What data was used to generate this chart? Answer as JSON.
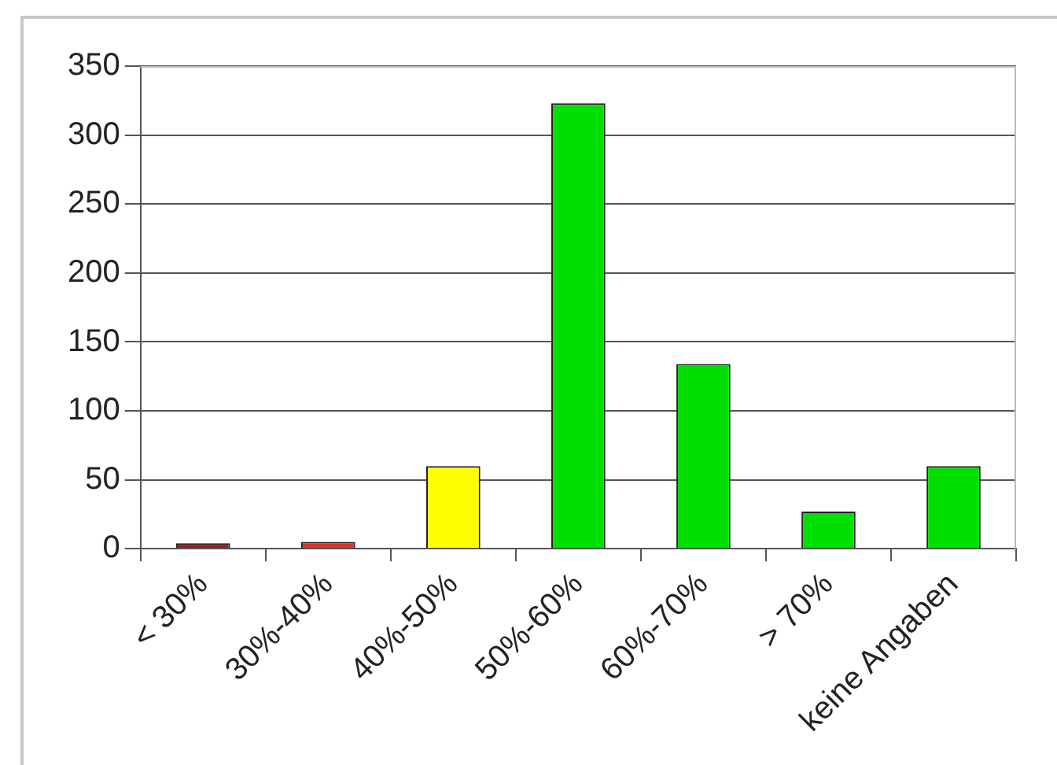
{
  "chart_data": {
    "type": "bar",
    "categories": [
      "< 30%",
      "30%-40%",
      "40%-50%",
      "50%-60%",
      "60%-70%",
      "> 70%",
      "keine Angaben"
    ],
    "values": [
      4,
      5,
      60,
      323,
      134,
      27,
      60
    ],
    "colors": [
      "#a01818",
      "#e03030",
      "#ffff00",
      "#00e000",
      "#00e000",
      "#00e000",
      "#00e000"
    ],
    "ylim": [
      0,
      350
    ],
    "yticks": [
      0,
      50,
      100,
      150,
      200,
      250,
      300,
      350
    ],
    "grid": "y",
    "legend": false
  }
}
